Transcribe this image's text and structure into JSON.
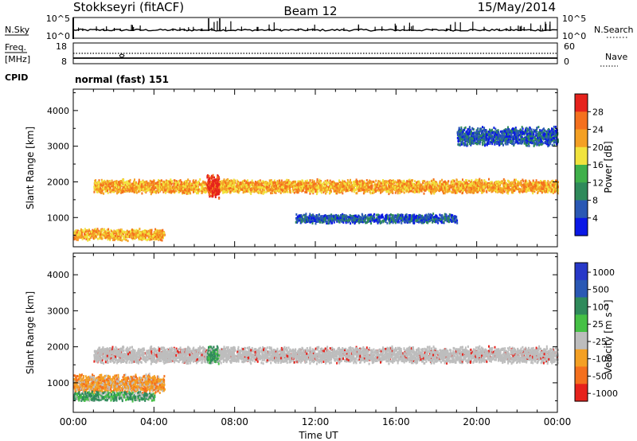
{
  "header": {
    "station": "Stokkseyri (fitACF)",
    "beam": "Beam 12",
    "date": "15/May/2014"
  },
  "strips": {
    "nsky_label": "N.Sky",
    "nsky_ticks": [
      "10^5",
      "10^0"
    ],
    "nsearch_label": "N.Search",
    "nsearch_ticks": [
      "10^5",
      "10^0"
    ],
    "freq_label_1": "Freq.",
    "freq_label_2": "[MHz]",
    "freq_ticks": [
      "18",
      "8"
    ],
    "nave_label": "Nave",
    "nave_ticks": [
      "60",
      "0"
    ],
    "cpid_label": "CPID",
    "cpid_value": "normal (fast) 151"
  },
  "colors": {
    "power": [
      "#0a18e6",
      "#2a58b4",
      "#2f8a5b",
      "#3fb04a",
      "#f1e33d",
      "#f4a024",
      "#f4701e",
      "#e6221c"
    ],
    "velocity": [
      "#2738c8",
      "#2a58b4",
      "#2f8a5b",
      "#45c045",
      "#bdbdbd",
      "#f4a024",
      "#f4701e",
      "#e6221c"
    ]
  },
  "chart_data": [
    {
      "type": "heatmap",
      "title": "",
      "xlabel": "Time UT",
      "ylabel": "Slant Range [km]",
      "x_range": [
        "00:00",
        "24:00"
      ],
      "x_ticks": [
        "00:00",
        "04:00",
        "08:00",
        "12:00",
        "16:00",
        "20:00",
        "00:00"
      ],
      "y_range": [
        180,
        4600
      ],
      "y_ticks": [
        "1000",
        "2000",
        "3000",
        "4000"
      ],
      "colorbar": {
        "label": "Power [dB]",
        "min": 0,
        "max": 32,
        "ticks": [
          "4",
          "8",
          "12",
          "16",
          "20",
          "24",
          "28"
        ]
      },
      "features": [
        {
          "x_start": 1.0,
          "x_end": 24.0,
          "range_km": 1900,
          "width_km": 300,
          "value_db": 22
        },
        {
          "x_start": 6.6,
          "x_end": 7.2,
          "range_km": 1900,
          "width_km": 500,
          "value_db": 30
        },
        {
          "x_start": 0.0,
          "x_end": 4.5,
          "range_km": 550,
          "width_km": 250,
          "value_db": 24
        },
        {
          "x_start": 19.0,
          "x_end": 24.0,
          "range_km": 3300,
          "width_km": 400,
          "value_db": 8
        },
        {
          "x_start": 11.0,
          "x_end": 19.0,
          "range_km": 1000,
          "width_km": 200,
          "value_db": 8
        }
      ]
    },
    {
      "type": "heatmap",
      "title": "",
      "xlabel": "Time UT",
      "ylabel": "Slant Range [km]",
      "x_range": [
        "00:00",
        "24:00"
      ],
      "x_ticks": [
        "00:00",
        "04:00",
        "08:00",
        "12:00",
        "16:00",
        "20:00",
        "00:00"
      ],
      "y_range": [
        180,
        4600
      ],
      "y_ticks": [
        "1000",
        "2000",
        "3000",
        "4000"
      ],
      "colorbar": {
        "label": "Velocity [m s⁻¹]",
        "ticks": [
          "1000",
          "500",
          "100",
          "25",
          "-25",
          "-100",
          "-500",
          "-1000"
        ]
      },
      "features": [
        {
          "x_start": 1.0,
          "x_end": 24.0,
          "range_km": 1800,
          "width_km": 350,
          "value_ms": 0
        },
        {
          "x_start": 0.0,
          "x_end": 4.5,
          "range_km": 1000,
          "width_km": 400,
          "value_ms": -300
        },
        {
          "x_start": 0.0,
          "x_end": 4.0,
          "range_km": 650,
          "width_km": 200,
          "value_ms": 300
        },
        {
          "x_start": 6.6,
          "x_end": 7.2,
          "range_km": 1800,
          "width_km": 400,
          "value_ms": 300
        }
      ]
    }
  ]
}
